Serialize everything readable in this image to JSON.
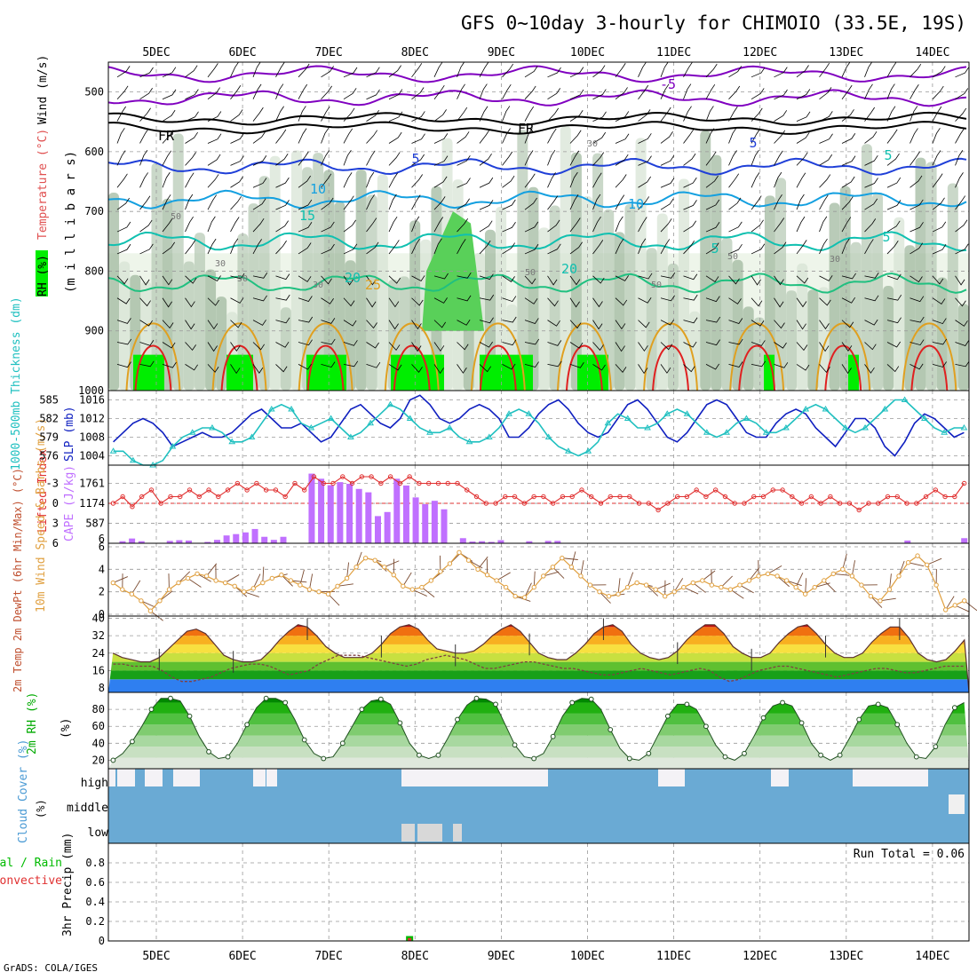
{
  "title": "GFS 0~10day 3-hourly for CHIMOIO (33.5E, 19S)",
  "footer": "GrADS: COLA/IGES",
  "dates": [
    "5DEC",
    "6DEC",
    "7DEC",
    "8DEC",
    "9DEC",
    "10DEC",
    "11DEC",
    "12DEC",
    "13DEC",
    "14DEC"
  ],
  "colors": {
    "rh_green": "#00ee00",
    "temp_purple": "#8000c0",
    "temp_blue": "#1f3fd8",
    "temp_cyan": "#14a0e0",
    "temp_teal": "#10c0b0",
    "temp_orange": "#e0a020",
    "temp_red": "#e02020",
    "slp_blue": "#1020c0",
    "thickness_cyan": "#20c0c0",
    "lifted_red": "#e03030",
    "cape_violet": "#c070ff",
    "wind_orange": "#e0a040",
    "rh2m_green": "#00cc00",
    "cloud_blue": "#6aaad4",
    "cloud_gray": "#d8d8d8",
    "precip_rain": "#00bb00",
    "precip_conv": "#e03030"
  },
  "chart_data": [
    {
      "type": "contour",
      "panel": "upper-air",
      "ylabel_parts": [
        "RH (%)",
        "Temperature (°C)",
        "Wind (m/s)"
      ],
      "yaxis_label": "(m i l l i b a r s)",
      "y_ticks": [
        500,
        600,
        700,
        800,
        900,
        1000
      ],
      "ylim": [
        1000,
        450
      ],
      "isotherm_labels": [
        "-5",
        "FR",
        "FR",
        "5",
        "5",
        "5",
        "10",
        "10",
        "15",
        "20",
        "20",
        "25",
        "5",
        "5",
        "30",
        "50",
        "30",
        "50",
        "30",
        "50",
        "50",
        "50",
        "30"
      ]
    },
    {
      "type": "line",
      "panel": "slp-thickness",
      "ylabel_left": "1000-500mb Thickness (dm)",
      "ylabel_right": "SLP (mb)",
      "y_ticks_left": [
        576,
        579,
        582,
        585
      ],
      "y_ticks_right": [
        1004,
        1008,
        1012,
        1016
      ],
      "ylim_slp": [
        1002,
        1018
      ],
      "series": [
        {
          "name": "SLP (mb)",
          "values": [
            1007,
            1009,
            1011,
            1012,
            1011,
            1009,
            1006,
            1007,
            1008,
            1009,
            1008,
            1008,
            1009,
            1011,
            1013,
            1014,
            1012,
            1010,
            1010,
            1011,
            1009,
            1007,
            1008,
            1011,
            1014,
            1015,
            1013,
            1011,
            1010,
            1012,
            1016,
            1017,
            1015,
            1012,
            1011,
            1012,
            1014,
            1015,
            1014,
            1012,
            1008,
            1008,
            1010,
            1013,
            1015,
            1016,
            1014,
            1011,
            1009,
            1008,
            1009,
            1012,
            1015,
            1016,
            1014,
            1011,
            1008,
            1007,
            1009,
            1012,
            1015,
            1016,
            1015,
            1012,
            1009,
            1008,
            1008,
            1011,
            1013,
            1014,
            1013,
            1010,
            1008,
            1006,
            1009,
            1012,
            1012,
            1010,
            1006,
            1004,
            1007,
            1011,
            1013,
            1012,
            1010,
            1008,
            1009
          ]
        },
        {
          "name": "Thickness (dm)",
          "values": [
            1005,
            1005,
            1003,
            1002,
            1002,
            1003,
            1006,
            1008,
            1009,
            1010,
            1010,
            1009,
            1007,
            1007,
            1008,
            1011,
            1014,
            1015,
            1014,
            1011,
            1010,
            1011,
            1012,
            1010,
            1008,
            1009,
            1011,
            1013,
            1015,
            1014,
            1012,
            1010,
            1009,
            1009,
            1010,
            1008,
            1007,
            1007,
            1008,
            1010,
            1013,
            1014,
            1013,
            1011,
            1008,
            1006,
            1005,
            1004,
            1005,
            1007,
            1011,
            1013,
            1012,
            1010,
            1010,
            1011,
            1013,
            1014,
            1013,
            1011,
            1009,
            1008,
            1009,
            1011,
            1012,
            1011,
            1009,
            1009,
            1010,
            1012,
            1014,
            1015,
            1014,
            1012,
            1010,
            1009,
            1010,
            1012,
            1014,
            1016,
            1016,
            1014,
            1012,
            1010,
            1009,
            1010,
            1010
          ]
        }
      ]
    },
    {
      "type": "bar-line",
      "panel": "cape-lifted-index",
      "ylabel_left": "Lifted Index",
      "ylabel_right": "CAPE (J/kg)",
      "y_ticks_left": [
        "-3",
        "0",
        "3",
        "6"
      ],
      "y_ticks_right": [
        587,
        1174,
        1761
      ],
      "ylim_cape": [
        0,
        2300
      ],
      "series": [
        {
          "name": "CAPE (J/kg)",
          "values": [
            0,
            60,
            140,
            60,
            0,
            0,
            70,
            90,
            80,
            0,
            40,
            100,
            230,
            270,
            320,
            420,
            190,
            100,
            190,
            0,
            0,
            2050,
            1900,
            1710,
            1800,
            1750,
            1600,
            1500,
            800,
            920,
            1900,
            1700,
            1350,
            1150,
            1250,
            1000,
            0,
            150,
            50,
            60,
            40,
            90,
            0,
            0,
            60,
            0,
            70,
            70,
            0,
            0,
            0,
            0,
            0,
            0,
            0,
            0,
            0,
            0,
            0,
            0,
            0,
            0,
            0,
            0,
            0,
            0,
            0,
            0,
            0,
            0,
            0,
            0,
            0,
            0,
            0,
            0,
            0,
            0,
            0,
            0,
            0,
            0,
            0,
            0,
            80,
            0,
            0,
            0,
            0,
            0,
            150
          ]
        },
        {
          "name": "Lifted Index",
          "values": [
            0,
            -1,
            0.5,
            -1,
            -2,
            0,
            -1,
            -1,
            -2,
            -1,
            -2,
            -1,
            -2,
            -3,
            -2,
            -3,
            -2,
            -2,
            -1,
            -3,
            -2,
            -4,
            -3,
            -3,
            -4,
            -3,
            -4,
            -4,
            -3,
            -4,
            -3,
            -4,
            -3,
            -3,
            -3,
            -3,
            -3,
            -2,
            -1,
            0,
            0,
            -1,
            -1,
            0,
            -1,
            -1,
            0,
            -1,
            -1,
            -2,
            -1,
            0,
            -1,
            -1,
            -1,
            0,
            0,
            1,
            0,
            -1,
            -1,
            -2,
            -1,
            -2,
            -1,
            0,
            0,
            -1,
            -1,
            -2,
            -2,
            -1,
            0,
            -1,
            0,
            -1,
            0,
            0,
            1,
            0,
            0,
            -1,
            -1,
            0,
            0,
            -1,
            -2,
            -1,
            -1,
            -3
          ]
        }
      ]
    },
    {
      "type": "line",
      "panel": "10m-wind",
      "ylabel": "10m Wind Speed & Barbs (m/s)",
      "y_ticks": [
        0,
        2,
        4,
        6
      ],
      "ylim": [
        0,
        6
      ],
      "series": [
        {
          "name": "10m Wind Speed (m/s)",
          "values": [
            2.8,
            2.2,
            1.8,
            1.2,
            0.3,
            1.2,
            2.2,
            2.8,
            3.2,
            3.6,
            3.4,
            3.0,
            2.8,
            2.5,
            2.0,
            2.3,
            2.8,
            3.2,
            3.5,
            3.0,
            2.6,
            2.2,
            2.0,
            1.8,
            2.5,
            3.2,
            4.2,
            5.0,
            4.8,
            4.2,
            3.5,
            2.5,
            2.2,
            2.4,
            3.0,
            3.8,
            4.5,
            5.5,
            4.8,
            4.0,
            3.5,
            3.0,
            2.4,
            1.6,
            1.5,
            2.4,
            3.4,
            4.2,
            5.0,
            4.2,
            3.4,
            2.6,
            2.0,
            1.6,
            1.8,
            2.4,
            2.8,
            2.6,
            2.2,
            1.6,
            2.0,
            2.4,
            2.8,
            3.0,
            2.6,
            2.4,
            2.2,
            2.6,
            3.0,
            3.4,
            3.6,
            3.4,
            3.0,
            2.4,
            1.8,
            2.4,
            3.0,
            3.6,
            4.0,
            3.4,
            2.6,
            1.6,
            1.2,
            2.2,
            3.4,
            4.6,
            5.2,
            4.4,
            2.6,
            0.4,
            0.8,
            1.2
          ]
        }
      ]
    },
    {
      "type": "area",
      "panel": "2m-temp",
      "ylabel": "2m Temp 2m DewPt (6hr Min/Max) (°C)",
      "y_ticks": [
        8,
        16,
        24,
        32,
        40
      ],
      "ylim": [
        6,
        41
      ],
      "series": [
        {
          "name": "2m Temp",
          "values": [
            24,
            22,
            21,
            20,
            20,
            22,
            26,
            30,
            34,
            35,
            33,
            28,
            23,
            21,
            20,
            20,
            21,
            25,
            30,
            34,
            37,
            36,
            32,
            27,
            24,
            22,
            22,
            22,
            24,
            28,
            33,
            36,
            37,
            35,
            30,
            26,
            25,
            24,
            24,
            25,
            28,
            32,
            35,
            37,
            34,
            29,
            24,
            22,
            21,
            21,
            24,
            28,
            33,
            36,
            37,
            34,
            28,
            24,
            22,
            21,
            22,
            25,
            30,
            34,
            37,
            37,
            33,
            27,
            24,
            22,
            22,
            24,
            29,
            33,
            36,
            37,
            33,
            28,
            24,
            22,
            22,
            24,
            29,
            33,
            36,
            36,
            31,
            24,
            21,
            20,
            21,
            25,
            30
          ]
        },
        {
          "name": "2m DewPt",
          "values": [
            19,
            19,
            18,
            18,
            18,
            16,
            13,
            11,
            11,
            12,
            13,
            15,
            17,
            18,
            19,
            19,
            18,
            16,
            14,
            15,
            16,
            19,
            21,
            23,
            23,
            23,
            22,
            21,
            20,
            19,
            18,
            19,
            21,
            22,
            23,
            22,
            21,
            19,
            17,
            17,
            18,
            19,
            20,
            20,
            19,
            18,
            17,
            17,
            16,
            15,
            14,
            14,
            15,
            16,
            17,
            16,
            15,
            14,
            15,
            16,
            17,
            16,
            13,
            11,
            12,
            14,
            16,
            17,
            18,
            18,
            17,
            16,
            15,
            14,
            13,
            14,
            15,
            16,
            17,
            17,
            16,
            15,
            15,
            16,
            17,
            18,
            18,
            18
          ]
        }
      ]
    },
    {
      "type": "area",
      "panel": "2m-rh",
      "ylabel": "2m RH (%)",
      "y_ticks": [
        20,
        40,
        60,
        80
      ],
      "ylim": [
        10,
        100
      ],
      "series": [
        {
          "name": "2m RH (%)",
          "values": [
            20,
            28,
            42,
            60,
            80,
            93,
            93,
            90,
            72,
            48,
            30,
            22,
            24,
            40,
            62,
            82,
            93,
            93,
            88,
            68,
            44,
            28,
            22,
            24,
            40,
            60,
            80,
            90,
            92,
            86,
            64,
            40,
            26,
            22,
            26,
            46,
            68,
            85,
            93,
            92,
            86,
            62,
            38,
            24,
            22,
            28,
            48,
            72,
            88,
            93,
            92,
            80,
            56,
            34,
            22,
            20,
            28,
            50,
            72,
            86,
            86,
            80,
            60,
            38,
            24,
            20,
            28,
            48,
            70,
            84,
            88,
            84,
            64,
            40,
            26,
            20,
            26,
            46,
            68,
            84,
            86,
            82,
            62,
            40,
            24,
            22,
            36,
            62,
            82,
            88
          ]
        }
      ]
    },
    {
      "type": "area",
      "panel": "cloud-cover",
      "ylabel": "Cloud Cover (%)",
      "level_labels": [
        "high",
        "middle",
        "low"
      ]
    },
    {
      "type": "bar",
      "panel": "precip",
      "ylabel": "3hr Precip (mm)",
      "legend_left": [
        "tal / Rain",
        "Convective"
      ],
      "y_ticks": [
        "0",
        "0.2",
        "0.4",
        "0.6",
        "0.8"
      ],
      "ylim": [
        0,
        1.0
      ],
      "annotation": "Run Total = 0.06",
      "series": [
        {
          "name": "Rain",
          "at_index": 31,
          "value": 0.05
        },
        {
          "name": "Convective",
          "at_index": 31,
          "value": 0.03
        }
      ]
    }
  ]
}
